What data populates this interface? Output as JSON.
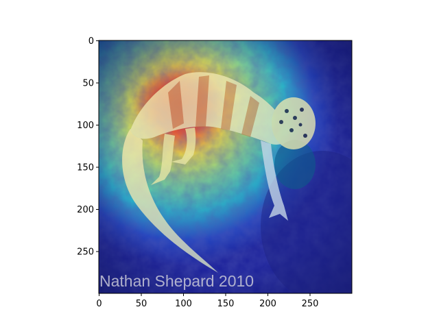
{
  "axes": {
    "x_ticks": [
      "0",
      "50",
      "100",
      "150",
      "200",
      "250"
    ],
    "y_ticks": [
      "0",
      "50",
      "100",
      "150",
      "200",
      "250"
    ],
    "x_range": [
      0,
      300
    ],
    "y_range": [
      0,
      300
    ]
  },
  "image": {
    "content": "gecko-on-rock-with-heatmap-overlay",
    "watermark_text": "Nathan Shepard 2010",
    "colors": {
      "background_rock": "#2a2f8a",
      "heat_low": "#1a1f9a",
      "heat_mid": "#27c4b0",
      "heat_high": "#f0e040",
      "heat_peak": "#e8302a"
    }
  }
}
